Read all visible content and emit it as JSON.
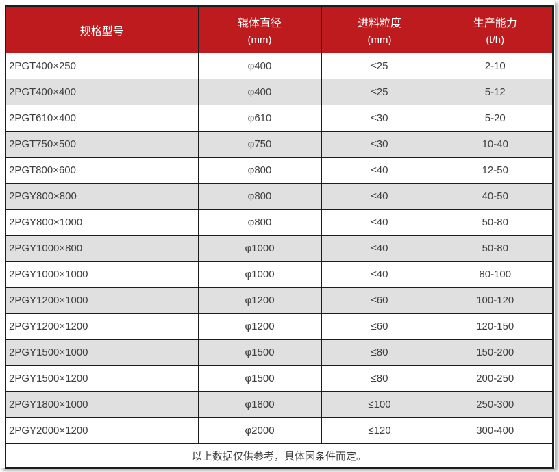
{
  "chart_data": {
    "type": "table",
    "columns": [
      {
        "label": "规格型号",
        "unit": ""
      },
      {
        "label": "辊体直径",
        "unit": "(mm)"
      },
      {
        "label": "进料粒度",
        "unit": "(mm)"
      },
      {
        "label": "生产能力",
        "unit": "(t/h)"
      }
    ],
    "rows": [
      [
        "2PGT400×250",
        "φ400",
        "≤25",
        "2-10"
      ],
      [
        "2PGT400×400",
        "φ400",
        "≤25",
        "5-12"
      ],
      [
        "2PGT610×400",
        "φ610",
        "≤30",
        "5-20"
      ],
      [
        "2PGT750×500",
        "φ750",
        "≤30",
        "10-40"
      ],
      [
        "2PGT800×600",
        "φ800",
        "≤40",
        "12-50"
      ],
      [
        "2PGY800×800",
        "φ800",
        "≤40",
        "40-50"
      ],
      [
        "2PGY800×1000",
        "φ800",
        "≤40",
        "50-80"
      ],
      [
        "2PGY1000×800",
        "φ1000",
        "≤40",
        "50-80"
      ],
      [
        "2PGY1000×1000",
        "φ1000",
        "≤40",
        "80-100"
      ],
      [
        "2PGY1200×1000",
        "φ1200",
        "≤60",
        "100-120"
      ],
      [
        "2PGY1200×1200",
        "φ1200",
        "≤60",
        "120-150"
      ],
      [
        "2PGY1500×1000",
        "φ1500",
        "≤80",
        "150-200"
      ],
      [
        "2PGY1500×1200",
        "φ1500",
        "≤80",
        "200-250"
      ],
      [
        "2PGY1800×1000",
        "φ1800",
        "≤100",
        "250-300"
      ],
      [
        "2PGY2000×1200",
        "φ2000",
        "≤120",
        "300-400"
      ]
    ],
    "footer_note": "以上数据仅供参考，具体因条件而定。"
  },
  "colors": {
    "header_bg": "#BE1B1E",
    "header_text": "#FFFFFF",
    "alt_row_bg": "#E0E0E0",
    "row_bg": "#FFFFFF",
    "border": "#1C1C1C",
    "body_text": "#3F3F3F"
  }
}
